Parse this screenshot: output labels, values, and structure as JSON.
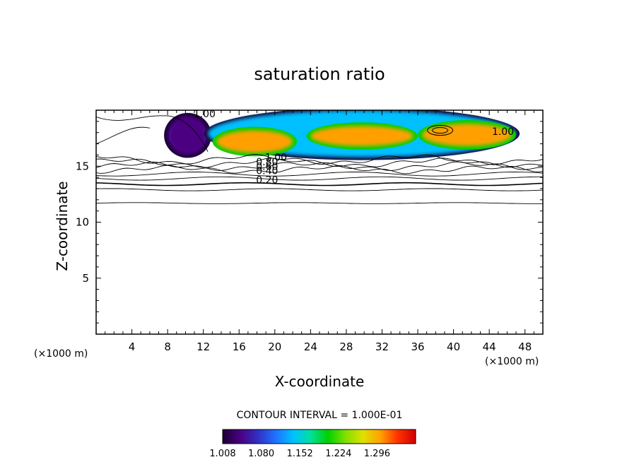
{
  "chart_data": {
    "type": "contour",
    "title": "saturation ratio",
    "xlabel": "X-coordinate",
    "ylabel": "Z-coordinate",
    "x_unit_left": "(×1000 m)",
    "x_unit_right": "(×1000 m)",
    "xlim": [
      0,
      50
    ],
    "ylim": [
      0,
      20
    ],
    "x_ticks": [
      4,
      8,
      12,
      16,
      20,
      24,
      28,
      32,
      36,
      40,
      44,
      48
    ],
    "y_ticks": [
      5,
      10,
      15
    ],
    "contour_interval_text": "CONTOUR INTERVAL = 1.000E-01",
    "contour_labels": [
      {
        "text": "1.00",
        "x": 10.9,
        "z": 19.7
      },
      {
        "text": "1.00",
        "x": 44.3,
        "z": 18.1
      },
      {
        "text": "1.00",
        "x": 18.9,
        "z": 15.8
      },
      {
        "text": "0.80",
        "x": 17.9,
        "z": 15.4
      },
      {
        "text": "0.60",
        "x": 17.9,
        "z": 15.0
      },
      {
        "text": "0.40",
        "x": 17.9,
        "z": 14.6
      },
      {
        "text": "0.20",
        "x": 17.9,
        "z": 13.8
      }
    ],
    "colorbar": {
      "min": 1.008,
      "max": 1.368,
      "tick_labels": [
        "1.008",
        "1.080",
        "1.152",
        "1.224",
        "1.296"
      ],
      "colors": [
        "#1a0033",
        "#4b0082",
        "#3030c0",
        "#2070ff",
        "#00c0ff",
        "#00e0a0",
        "#00d000",
        "#80e000",
        "#e0e000",
        "#ffa000",
        "#ff3000",
        "#d00000"
      ]
    },
    "regions": [
      {
        "name": "left-plume",
        "x": [
          8.0,
          12.5
        ],
        "z": [
          16.0,
          19.5
        ],
        "level": 1.05
      },
      {
        "name": "main-band",
        "x": [
          12.5,
          47.0
        ],
        "z": [
          15.8,
          20.0
        ],
        "level": 1.15
      },
      {
        "name": "core-1",
        "x": [
          13.5,
          22.0
        ],
        "z": [
          16.2,
          18.2
        ],
        "level": 1.3
      },
      {
        "name": "core-2",
        "x": [
          24.0,
          35.5
        ],
        "z": [
          16.8,
          18.6
        ],
        "level": 1.3
      },
      {
        "name": "core-3",
        "x": [
          36.5,
          46.5
        ],
        "z": [
          16.8,
          18.8
        ],
        "level": 1.31
      }
    ]
  }
}
